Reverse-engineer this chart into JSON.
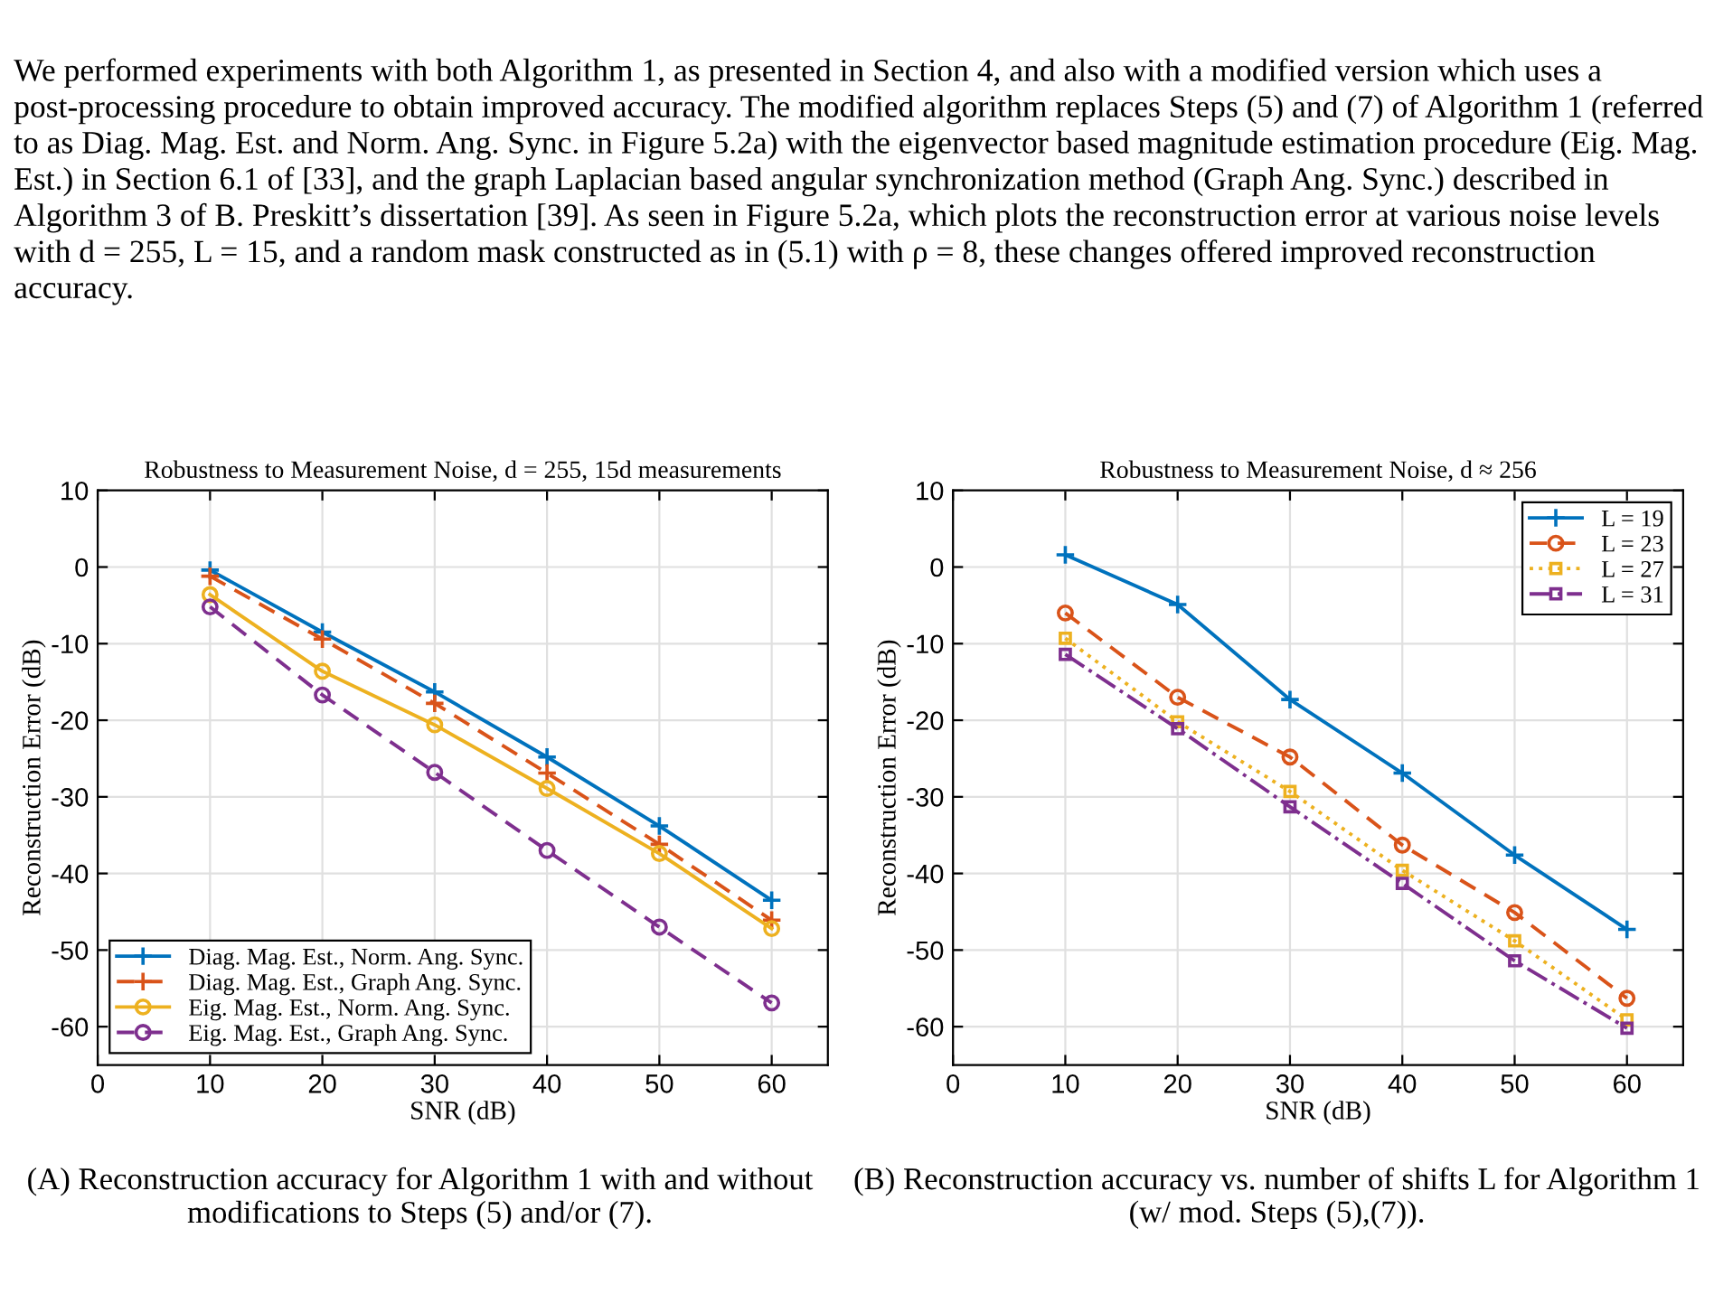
{
  "chart_data": [
    {
      "type": "line",
      "title": "Robustness to Measurement Noise, d = 255, 15d measurements",
      "xlabel": "SNR (dB)",
      "ylabel": "Reconstruction Error (dB)",
      "x": [
        10,
        20,
        30,
        40,
        50,
        60
      ],
      "series": [
        {
          "name": "Diag. Mag. Est., Norm. Ang. Sync.",
          "color": "#0072bd",
          "marker": "cross",
          "line_style": "solid",
          "values": [
            -0.4,
            -8.5,
            -16.3,
            -24.8,
            -33.8,
            -43.5
          ]
        },
        {
          "name": "Diag. Mag. Est., Graph Ang. Sync.",
          "color": "#d95319",
          "marker": "cross",
          "line_style": "dashed",
          "values": [
            -1.2,
            -9.4,
            -17.8,
            -26.9,
            -36.2,
            -46.1
          ]
        },
        {
          "name": "Eig. Mag. Est., Norm. Ang. Sync.",
          "color": "#edb120",
          "marker": "circle",
          "line_style": "solid",
          "values": [
            -3.6,
            -13.6,
            -20.6,
            -28.9,
            -37.4,
            -47.2
          ]
        },
        {
          "name": "Eig. Mag. Est., Graph Ang. Sync.",
          "color": "#7e2f8e",
          "marker": "circle",
          "line_style": "dashed",
          "values": [
            -5.2,
            -16.7,
            -26.8,
            -37.0,
            -47.0,
            -56.9
          ]
        }
      ],
      "xlim": [
        0,
        65
      ],
      "ylim": [
        -65,
        10
      ],
      "xticks": [
        0,
        10,
        20,
        30,
        40,
        50,
        60
      ],
      "yticks": [
        -60,
        -50,
        -40,
        -30,
        -20,
        -10,
        0,
        10
      ],
      "grid": true,
      "legend": "bottom left",
      "annotations": [
        "We performed experiments with both Algorithm 1, as presented in Section 4, and also with a modified version which uses a post-processing procedure to obtain improved accuracy. The modified algorithm replaces Steps (5) and (7) of Algorithm 1 (referred to as Diag. Mag. Est. and Norm. Ang. Sync. in Figure 5.2a) with the eigenvector based magnitude estimation procedure (Eig. Mag. Est.) in Section 6.1 of [33], and the graph Laplacian based angular synchronization method (Graph Ang. Sync.) described in Algorithm 3 of B. Preskitt’s dissertation [39]. As seen in Figure 5.2a, which plots the reconstruction error at various noise levels with d = 255, L = 15, and a random mask constructed as in (5.1) with ρ = 8, these changes offered improved reconstruction accuracy.",
        "(A) Reconstruction accuracy for Algorithm 1 with and without modifications to Steps (5) and/or (7)."
      ]
    },
    {
      "type": "line",
      "title": "Robustness to Measurement Noise, d ≈ 256",
      "xlabel": "SNR (dB)",
      "ylabel": "Reconstruction Error (dB)",
      "x": [
        10,
        20,
        30,
        40,
        50,
        60
      ],
      "series": [
        {
          "name": "L = 19",
          "color": "#0072bd",
          "marker": "cross",
          "line_style": "solid",
          "values": [
            1.6,
            -4.9,
            -17.3,
            -26.9,
            -37.6,
            -47.3
          ]
        },
        {
          "name": "L = 23",
          "color": "#d95319",
          "marker": "circle",
          "line_style": "dashed",
          "values": [
            -6.0,
            -17.0,
            -24.8,
            -36.3,
            -45.1,
            -56.3
          ]
        },
        {
          "name": "L = 27",
          "color": "#edb120",
          "marker": "square",
          "line_style": "dotted",
          "values": [
            -9.3,
            -20.2,
            -29.3,
            -39.6,
            -48.8,
            -59.1
          ]
        },
        {
          "name": "L = 31",
          "color": "#7e2f8e",
          "marker": "square",
          "line_style": "dashdot",
          "values": [
            -11.4,
            -21.1,
            -31.3,
            -41.3,
            -51.4,
            -60.2
          ]
        }
      ],
      "xlim": [
        0,
        65
      ],
      "ylim": [
        -65,
        10
      ],
      "xticks": [
        0,
        10,
        20,
        30,
        40,
        50,
        60
      ],
      "yticks": [
        -60,
        -50,
        -40,
        -30,
        -20,
        -10,
        0,
        10
      ],
      "grid": true,
      "legend": "top right",
      "annotations": [
        "(B) Reconstruction accuracy vs. number of shifts L for Algorithm 1 (w/ mod. Steps (5),(7))."
      ]
    }
  ]
}
